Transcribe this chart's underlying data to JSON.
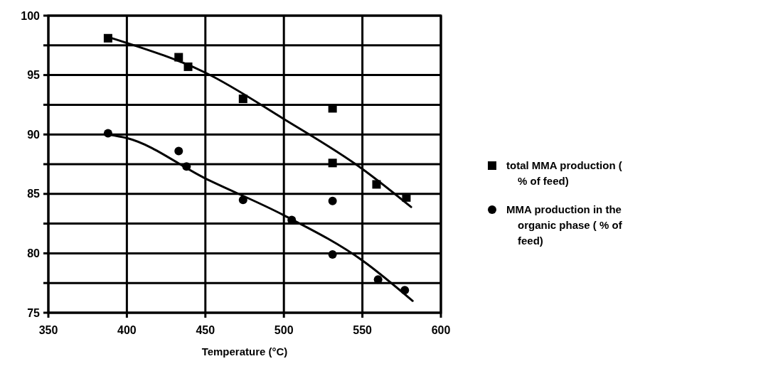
{
  "chart_data": {
    "type": "scatter",
    "xlabel": "Temperature (°C)",
    "xlim": [
      350,
      600
    ],
    "xticks": [
      350,
      400,
      450,
      500,
      550,
      600
    ],
    "ylim": [
      75,
      100
    ],
    "yticks": [
      75,
      {
        "value": 77.5,
        "label": null
      },
      80,
      {
        "value": 82.5,
        "label": null
      },
      85,
      {
        "value": 87.5,
        "label": null
      },
      90,
      {
        "value": 92.5,
        "label": null
      },
      95,
      {
        "value": 97.5,
        "label": null
      },
      100
    ],
    "grid": true,
    "legend": "right",
    "series": [
      {
        "name": "total MMA production ( % of feed)",
        "color": "#000000",
        "marker": "square",
        "x": [
          388,
          433,
          439,
          474,
          531,
          531,
          559,
          578
        ],
        "values": [
          98.1,
          96.5,
          95.7,
          93.0,
          92.2,
          87.6,
          85.8,
          84.7
        ]
      },
      {
        "name": "MMA production in the organic phase ( % of feed)",
        "color": "#000000",
        "marker": "circle",
        "x": [
          388,
          433,
          438,
          474,
          505,
          531,
          531,
          560,
          577
        ],
        "values": [
          90.1,
          88.6,
          87.3,
          84.5,
          82.8,
          84.4,
          79.9,
          77.8,
          76.9
        ]
      },
      {
        "type": "line",
        "color": "#000000",
        "marker": "none",
        "x": [
          388,
          400,
          450,
          500,
          550,
          581
        ],
        "values": [
          98.2,
          97.7,
          95.2,
          91.3,
          87.1,
          83.9
        ]
      },
      {
        "type": "line",
        "color": "#000000",
        "marker": "none",
        "x": [
          388,
          400,
          450,
          500,
          550,
          582
        ],
        "values": [
          90.0,
          89.7,
          86.3,
          83.2,
          79.4,
          76.0
        ]
      }
    ]
  }
}
